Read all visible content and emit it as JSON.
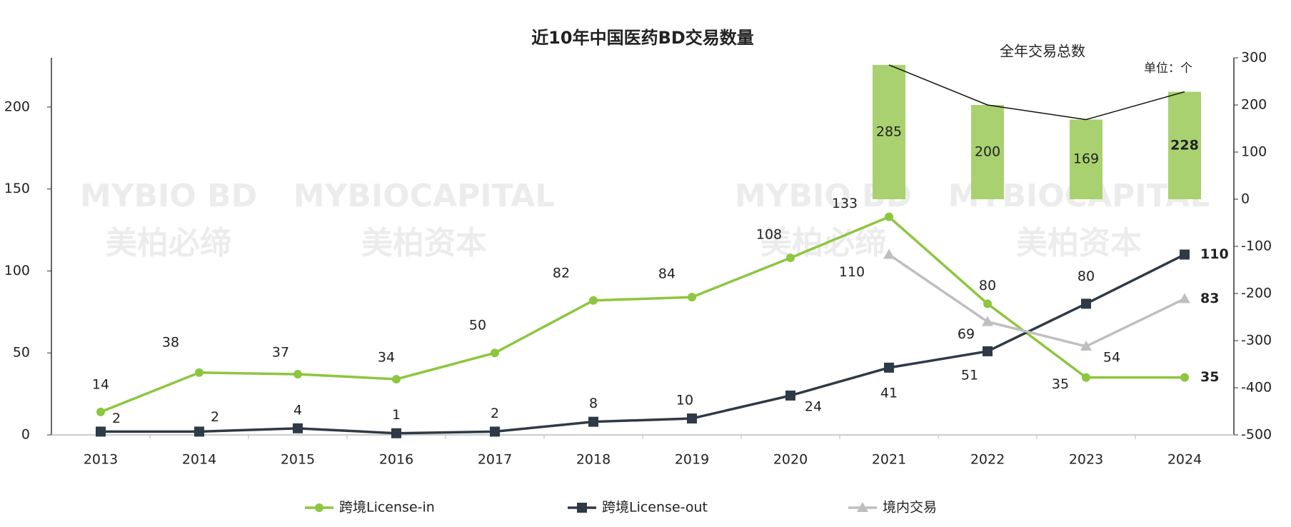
{
  "chart_data": {
    "type": "line",
    "title": "近10年中国医药BD交易数量",
    "annotations": [
      "全年交易总数",
      "单位：个"
    ],
    "watermarks": [
      "MYBIO BD",
      "美柏必缔",
      "MYBIOCAPITAL",
      "美柏资本",
      "MYBIO BD",
      "美柏必缔",
      "MYBIOCAPITAL",
      "美柏资本"
    ],
    "categories": [
      "2013",
      "2014",
      "2015",
      "2016",
      "2017",
      "2018",
      "2019",
      "2020",
      "2021",
      "2022",
      "2023",
      "2024"
    ],
    "series": [
      {
        "name": "跨境License-in",
        "color": "#8dc63f",
        "marker": "circle",
        "values": [
          14,
          38,
          37,
          34,
          50,
          82,
          84,
          108,
          133,
          80,
          35,
          35
        ]
      },
      {
        "name": "跨境License-out",
        "color": "#2e3a46",
        "marker": "square",
        "values": [
          2,
          2,
          4,
          1,
          2,
          8,
          10,
          24,
          41,
          51,
          80,
          110
        ]
      },
      {
        "name": "境内交易",
        "color": "#bfbfbf",
        "marker": "triangle",
        "values": [
          null,
          null,
          null,
          null,
          null,
          null,
          null,
          null,
          110,
          69,
          54,
          83
        ]
      },
      {
        "name": "全年交易总数",
        "type": "bar",
        "axis": "y2",
        "color": "#a9d16f",
        "values": [
          null,
          null,
          null,
          null,
          null,
          null,
          null,
          null,
          285,
          200,
          169,
          228
        ]
      }
    ],
    "ylim": [
      0,
      230
    ],
    "yticks": [
      0,
      50,
      100,
      150,
      200
    ],
    "y2lim": [
      -500,
      300
    ],
    "y2ticks": [
      -500,
      -400,
      -300,
      -200,
      -100,
      0,
      100,
      200,
      300
    ],
    "legend": "bottom"
  }
}
